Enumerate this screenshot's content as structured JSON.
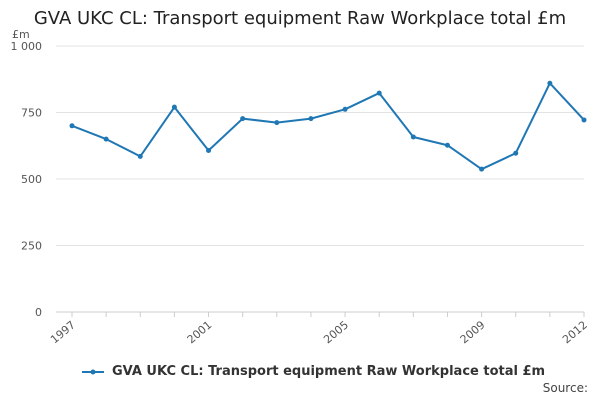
{
  "colors": {
    "series": "#1f77b4",
    "grid": "#e3e3e3",
    "axis": "#cccccc",
    "text": "#555555"
  },
  "chart_data": {
    "type": "line",
    "title": "GVA UKC CL: Transport equipment Raw Workplace total £m",
    "xlabel": "",
    "ylabel": "£m",
    "ylim": [
      0,
      1000
    ],
    "yticks": [
      0,
      250,
      500,
      750,
      1000
    ],
    "ytick_labels": [
      "0",
      "250",
      "500",
      "750",
      "1 000"
    ],
    "xlim": [
      1997,
      2012
    ],
    "xticks": [
      1997,
      2001,
      2005,
      2009,
      2012
    ],
    "xtick_labels": [
      "1997",
      "2001",
      "2005",
      "2009",
      "2012"
    ],
    "grid": true,
    "legend_position": "bottom",
    "x": [
      1997,
      1998,
      1999,
      2000,
      2001,
      2002,
      2003,
      2004,
      2005,
      2006,
      2007,
      2008,
      2009,
      2010,
      2011,
      2012
    ],
    "series": [
      {
        "name": "GVA UKC CL: Transport equipment Raw Workplace total £m",
        "values": [
          700,
          650,
          585,
          770,
          607,
          727,
          712,
          727,
          762,
          823,
          658,
          627,
          537,
          597,
          860,
          722
        ]
      }
    ]
  },
  "source_label": "Source:"
}
